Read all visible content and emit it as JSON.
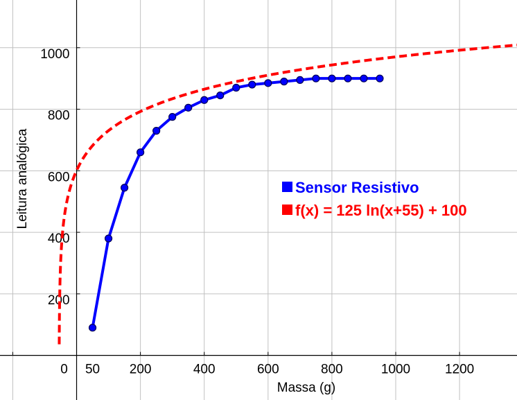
{
  "chart_data": {
    "type": "line",
    "xlabel": "Massa (g)",
    "ylabel": "Leitura analógica",
    "xlim": [
      -240,
      1380
    ],
    "ylim": [
      -145,
      1155
    ],
    "x_ticks": [
      {
        "value": 0,
        "label": "0"
      },
      {
        "value": 50,
        "label": "50"
      },
      {
        "value": 200,
        "label": "200"
      },
      {
        "value": 400,
        "label": "400"
      },
      {
        "value": 600,
        "label": "600"
      },
      {
        "value": 800,
        "label": "800"
      },
      {
        "value": 1000,
        "label": "1000"
      },
      {
        "value": 1200,
        "label": "1200"
      }
    ],
    "x_grid": [
      -200,
      0,
      200,
      400,
      600,
      800,
      1000,
      1200
    ],
    "y_ticks": [
      200,
      400,
      600,
      800,
      1000
    ],
    "grid": true,
    "legend_position": "right",
    "series": [
      {
        "name": "Sensor Resistivo",
        "color": "#0000ff",
        "style": "solid-markers",
        "x": [
          50,
          100,
          150,
          200,
          250,
          300,
          350,
          400,
          450,
          500,
          550,
          600,
          650,
          700,
          750,
          800,
          850,
          900,
          950
        ],
        "y": [
          90,
          380,
          545,
          660,
          730,
          775,
          805,
          830,
          845,
          870,
          880,
          885,
          890,
          895,
          900,
          900,
          900,
          900,
          900
        ]
      },
      {
        "name": "f(x) = 125 ln(x+55) + 100",
        "color": "#ff0000",
        "style": "dashed",
        "function": "125*ln(x+55)+100",
        "x_from": -54.4,
        "x_to": 1380
      }
    ]
  }
}
